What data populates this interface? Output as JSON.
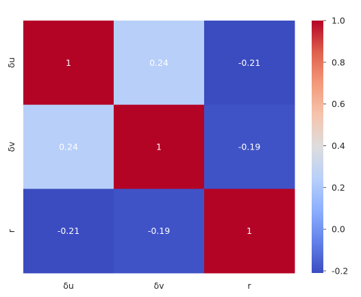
{
  "chart_data": {
    "type": "heatmap",
    "title": "",
    "x_labels": [
      "δu",
      "δv",
      "r"
    ],
    "y_labels": [
      "δu",
      "δv",
      "r"
    ],
    "values": [
      [
        1,
        0.24,
        -0.21
      ],
      [
        0.24,
        1,
        -0.19
      ],
      [
        -0.21,
        -0.19,
        1
      ]
    ],
    "annotations": [
      [
        "1",
        "0.24",
        "-0.21"
      ],
      [
        "0.24",
        "1",
        "-0.19"
      ],
      [
        "-0.21",
        "-0.19",
        "1"
      ]
    ],
    "colormap": "coolwarm",
    "vmin": -0.21,
    "vmax": 1,
    "colorbar": {
      "ticks": [
        -0.2,
        0.0,
        0.2,
        0.4,
        0.6,
        0.8,
        1.0
      ],
      "tick_labels": [
        "-0.2",
        "0.0",
        "0.2",
        "0.4",
        "0.6",
        "0.8",
        "1.0"
      ],
      "placement": "right"
    }
  }
}
